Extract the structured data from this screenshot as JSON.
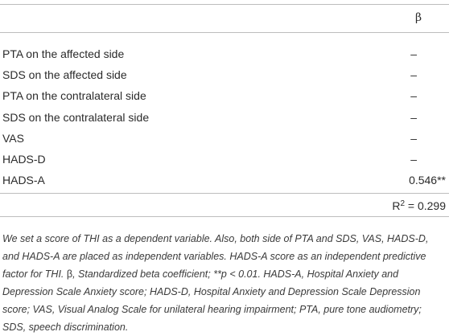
{
  "table": {
    "header": {
      "beta": "β"
    },
    "rows": [
      {
        "label": "PTA on the affected side",
        "value": "–"
      },
      {
        "label": "SDS on the affected side",
        "value": "–"
      },
      {
        "label": "PTA on the contralateral side",
        "value": "–"
      },
      {
        "label": "SDS on the contralateral side",
        "value": "–"
      },
      {
        "label": "VAS",
        "value": "–"
      },
      {
        "label": "HADS-D",
        "value": "–"
      },
      {
        "label": "HADS-A",
        "value": "0.546**"
      }
    ],
    "r2": {
      "prefix": "R",
      "exp": "2",
      "eq": " = 0.299"
    }
  },
  "footnote": {
    "part1": "We set a score of THI as a dependent variable. Also, both side of PTA and SDS, VAS, HADS-D, and HADS-A are placed as independent variables. HADS-A score as an independent predictive factor for THI. ",
    "beta_symbol": "β",
    "part2": ", Standardized beta coefficient; **p < 0.01. HADS-A, Hospital Anxiety and Depression Scale Anxiety score; HADS-D, Hospital Anxiety and Depression Scale Depression score; VAS, Visual Analog Scale for unilateral hearing impairment; PTA, pure tone audiometry; SDS, speech discrimination."
  }
}
